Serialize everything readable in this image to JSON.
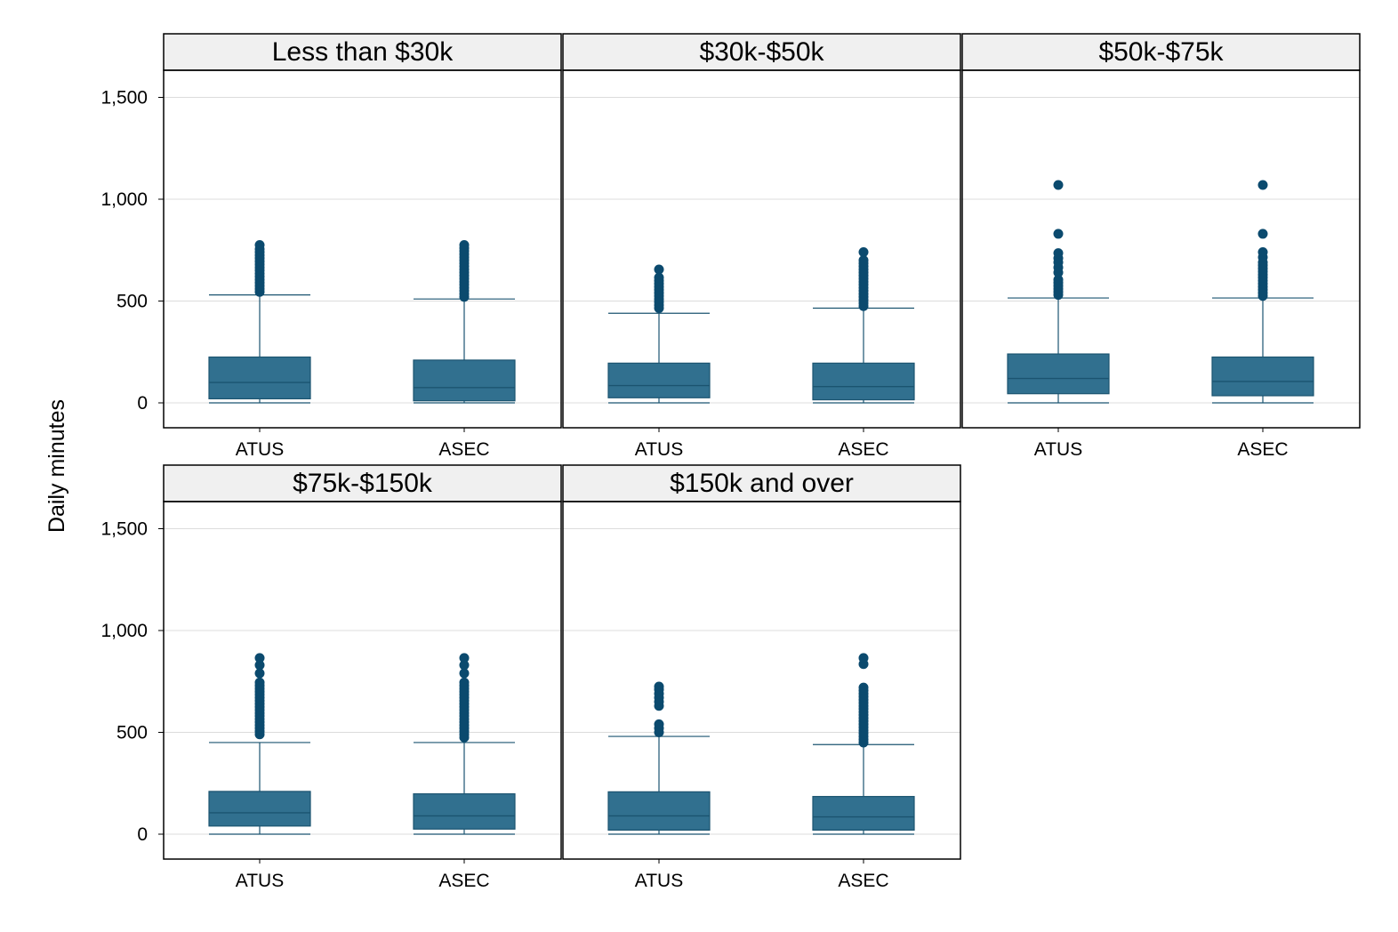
{
  "chart_data": {
    "type": "box",
    "ylabel": "Daily minutes",
    "xlabel": "",
    "ylim": [
      -130,
      1650
    ],
    "yticks": [
      0,
      500,
      1000,
      1500
    ],
    "ytick_labels": [
      "0",
      "500",
      "1,000",
      "1,500"
    ],
    "grid": true,
    "categories": [
      "ATUS",
      "ASEC"
    ],
    "colors": {
      "box_fill": "#31708f",
      "box_line": "#1b5470",
      "outlier": "#0b4a6e",
      "grid": "#dcdcdc",
      "strip_bg": "#f0f0f0"
    },
    "panels": [
      {
        "title": "Less than $30k",
        "boxes": [
          {
            "category": "ATUS",
            "min": 0,
            "q1": 20,
            "median": 100,
            "q3": 225,
            "max": 530,
            "outliers": [
              545,
              560,
              575,
              590,
              605,
              620,
              635,
              650,
              665,
              680,
              695,
              710,
              725,
              740,
              755,
              775
            ]
          },
          {
            "category": "ASEC",
            "min": 0,
            "q1": 10,
            "median": 75,
            "q3": 210,
            "max": 510,
            "outliers": [
              520,
              535,
              550,
              565,
              580,
              595,
              610,
              625,
              640,
              655,
              670,
              685,
              700,
              715,
              730,
              745,
              760,
              775
            ]
          }
        ]
      },
      {
        "title": "$30k-$50k",
        "boxes": [
          {
            "category": "ATUS",
            "min": 0,
            "q1": 25,
            "median": 85,
            "q3": 195,
            "max": 440,
            "outliers": [
              465,
              480,
              495,
              510,
              525,
              540,
              555,
              570,
              585,
              600,
              615,
              655
            ]
          },
          {
            "category": "ASEC",
            "min": 0,
            "q1": 15,
            "median": 80,
            "q3": 195,
            "max": 465,
            "outliers": [
              475,
              490,
              505,
              520,
              535,
              550,
              565,
              580,
              595,
              610,
              625,
              640,
              655,
              670,
              685,
              700,
              740
            ]
          }
        ]
      },
      {
        "title": "$50k-$75k",
        "boxes": [
          {
            "category": "ATUS",
            "min": 0,
            "q1": 45,
            "median": 120,
            "q3": 240,
            "max": 515,
            "outliers": [
              530,
              545,
              560,
              575,
              590,
              605,
              640,
              665,
              690,
              710,
              735,
              830,
              1070
            ]
          },
          {
            "category": "ASEC",
            "min": 0,
            "q1": 35,
            "median": 105,
            "q3": 225,
            "max": 515,
            "outliers": [
              525,
              540,
              555,
              570,
              585,
              600,
              615,
              630,
              645,
              660,
              675,
              690,
              715,
              740,
              830,
              1070
            ]
          }
        ]
      },
      {
        "title": "$75k-$150k",
        "boxes": [
          {
            "category": "ATUS",
            "min": 0,
            "q1": 40,
            "median": 105,
            "q3": 210,
            "max": 450,
            "outliers": [
              490,
              505,
              520,
              535,
              550,
              565,
              580,
              595,
              610,
              625,
              640,
              655,
              670,
              685,
              700,
              715,
              730,
              745,
              790,
              830,
              865
            ]
          },
          {
            "category": "ASEC",
            "min": 0,
            "q1": 25,
            "median": 90,
            "q3": 198,
            "max": 450,
            "outliers": [
              475,
              490,
              505,
              520,
              535,
              550,
              565,
              580,
              595,
              610,
              625,
              640,
              655,
              670,
              685,
              700,
              715,
              730,
              745,
              790,
              830,
              865
            ]
          }
        ]
      },
      {
        "title": "$150k and over",
        "boxes": [
          {
            "category": "ATUS",
            "min": 0,
            "q1": 20,
            "median": 90,
            "q3": 208,
            "max": 480,
            "outliers": [
              500,
              520,
              540,
              630,
              650,
              670,
              690,
              710,
              725
            ]
          },
          {
            "category": "ASEC",
            "min": 0,
            "q1": 20,
            "median": 85,
            "q3": 185,
            "max": 440,
            "outliers": [
              450,
              465,
              480,
              495,
              510,
              525,
              540,
              555,
              570,
              585,
              600,
              615,
              630,
              645,
              660,
              675,
              690,
              705,
              720,
              835,
              865
            ]
          }
        ]
      }
    ]
  }
}
